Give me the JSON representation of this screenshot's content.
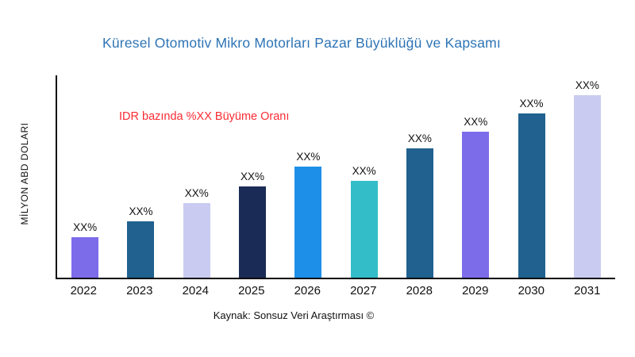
{
  "chart_data": {
    "type": "bar",
    "title": "Küresel Otomotiv Mikro Motorları Pazar Büyüklüğü ve Kapsamı",
    "ylabel": "MİLYON ABD DOLARI",
    "xlabel": "",
    "annotation": "IDR bazında %XX Büyüme Oranı",
    "source": "Kaynak: Sonsuz Veri Araştırması ©",
    "categories": [
      "2022",
      "2023",
      "2024",
      "2025",
      "2026",
      "2027",
      "2028",
      "2029",
      "2030",
      "2031"
    ],
    "values": [
      22,
      31,
      41,
      50,
      61,
      53,
      71,
      80,
      90,
      100
    ],
    "bar_labels": [
      "XX%",
      "XX%",
      "XX%",
      "XX%",
      "XX%",
      "XX%",
      "XX%",
      "XX%",
      "XX%",
      "XX%"
    ],
    "bar_colors": [
      "#7C6CEA",
      "#20618F",
      "#C9CBF0",
      "#1A2B55",
      "#1E8FE8",
      "#33BDC8",
      "#20618F",
      "#7C6CEA",
      "#20618F",
      "#C9CBF0"
    ],
    "ylim": [
      0,
      110
    ],
    "grid": "off",
    "legend": "none",
    "annotation_color": "#FB2B33",
    "title_color": "#2E74B5",
    "axis_color": "#0a0a0a"
  }
}
